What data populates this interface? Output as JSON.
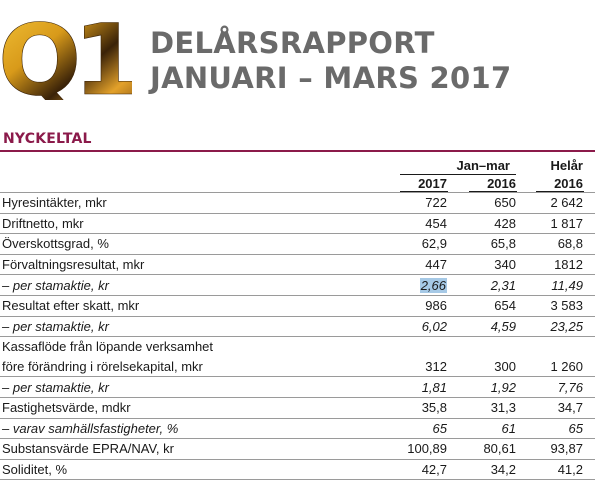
{
  "header": {
    "badge": "Q1",
    "title_line1": "DELÅRSRAPPORT",
    "title_line2": "JANUARI – MARS 2017"
  },
  "section": {
    "title": "NYCKELTAL"
  },
  "columns": {
    "group_label": "Jan–mar",
    "full_year_label": "Helår",
    "years": [
      "2017",
      "2016",
      "2016"
    ]
  },
  "rows": [
    {
      "label": "Hyresintäkter, mkr",
      "v": [
        "722",
        "650",
        "2 642"
      ],
      "italic": false
    },
    {
      "label": "Driftnetto, mkr",
      "v": [
        "454",
        "428",
        "1 817"
      ],
      "italic": false
    },
    {
      "label": "Överskottsgrad, %",
      "v": [
        "62,9",
        "65,8",
        "68,8"
      ],
      "italic": false
    },
    {
      "label": "Förvaltningsresultat, mkr",
      "v": [
        "447",
        "340",
        "1812"
      ],
      "italic": false
    },
    {
      "label": "– per stamaktie, kr",
      "v": [
        "2,66",
        "2,31",
        "11,49"
      ],
      "italic": true
    },
    {
      "label": "Resultat efter skatt, mkr",
      "v": [
        "986",
        "654",
        "3 583"
      ],
      "italic": false
    },
    {
      "label": "–  per stamaktie, kr",
      "v": [
        "6,02",
        "4,59",
        "23,25"
      ],
      "italic": true
    },
    {
      "label": "Kassaflöde från löpande verksamhet",
      "v": [
        "",
        "",
        ""
      ],
      "italic": false
    },
    {
      "label": "före förändring i rörelsekapital, mkr",
      "v": [
        "312",
        "300",
        "1 260"
      ],
      "italic": false
    },
    {
      "label": "– per stamaktie, kr",
      "v": [
        "1,81",
        "1,92",
        "7,76"
      ],
      "italic": true
    },
    {
      "label": "Fastighetsvärde, mdkr",
      "v": [
        "35,8",
        "31,3",
        "34,7"
      ],
      "italic": false
    },
    {
      "label": "– varav samhällsfastigheter, %",
      "v": [
        "65",
        "61",
        "65"
      ],
      "italic": true
    },
    {
      "label": "Substansvärde EPRA/NAV, kr",
      "v": [
        "100,89",
        "80,61",
        "93,87"
      ],
      "italic": false
    },
    {
      "label": "Soliditet, %",
      "v": [
        "42,7",
        "34,2",
        "41,2"
      ],
      "italic": false
    }
  ]
}
